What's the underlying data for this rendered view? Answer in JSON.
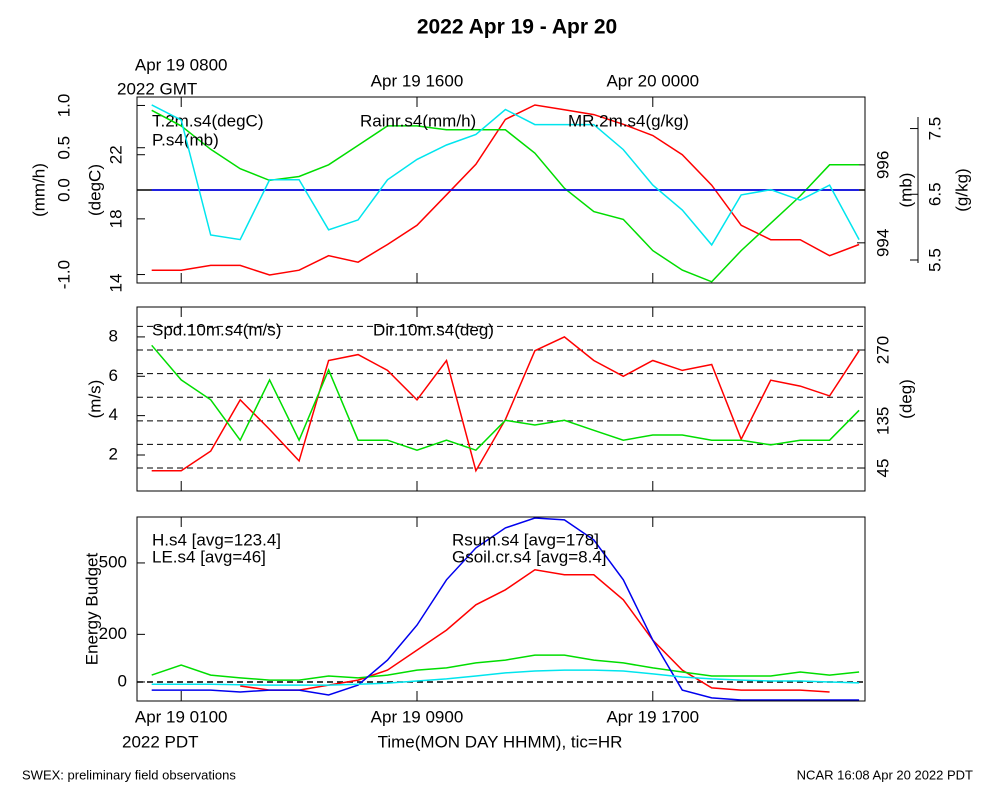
{
  "chart_data": {
    "type": "line",
    "title": "2022 Apr 19 - Apr 20",
    "xlabel": "Time(MON DAY HHMM), tic=HR",
    "x_note": "2022 PDT",
    "x2_note": "2022 GMT",
    "x": [
      0,
      1,
      2,
      3,
      4,
      5,
      6,
      7,
      8,
      9,
      10,
      11,
      12,
      13,
      14,
      15,
      16,
      17,
      18,
      19,
      20,
      21,
      22,
      23,
      24
    ],
    "xlim": [
      -0.5,
      24.2
    ],
    "xticks": [
      {
        "value": 1,
        "label": "Apr 19 0100"
      },
      {
        "value": 9,
        "label": "Apr 19 0900"
      },
      {
        "value": 17,
        "label": "Apr 19 1700"
      }
    ],
    "x2ticks": [
      {
        "value": 1,
        "label": "Apr 19 0800"
      },
      {
        "value": 9,
        "label": "Apr 19 1600"
      },
      {
        "value": 17,
        "label": "Apr 20 0000"
      }
    ],
    "panels": [
      {
        "axes": [
          {
            "label": "(mm/h)",
            "ylim": [
              -1.1,
              1.1
            ],
            "yticks": [
              {
                "value": -1,
                "label": "-1.0"
              },
              {
                "value": 0,
                "label": "0.0"
              },
              0.5,
              {
                "value": 1,
                "label": "1.0"
              }
            ],
            "baseline": 0
          },
          {
            "label": "(degC)",
            "ylim": [
              14,
              25.6
            ],
            "yticks": [
              14,
              18,
              22
            ]
          },
          {
            "label": "(mb)",
            "ylim": [
              992.97,
              997.74
            ],
            "yticks": [
              994,
              996
            ]
          },
          {
            "label": "(g/kg)",
            "ylim": [
              5.15,
              7.98
            ],
            "yticks": [
              5.5,
              6.5,
              7.5
            ]
          }
        ],
        "series": [
          {
            "name": "T.2m.s4(degC)",
            "color": "#ff0000",
            "axis": 1,
            "values": [
              14.8,
              14.8,
              15.1,
              15.1,
              14.5,
              14.8,
              15.7,
              15.3,
              16.4,
              17.6,
              19.5,
              21.4,
              24.2,
              25.1,
              24.8,
              24.5,
              23.9,
              23.2,
              22.0,
              20.1,
              17.6,
              16.7,
              16.7,
              15.7,
              16.4
            ]
          },
          {
            "name": "P.s4(mb)",
            "color": "#00dd00",
            "axis": 2,
            "values": [
              997.4,
              997.0,
              996.4,
              995.9,
              995.6,
              995.7,
              996.0,
              996.5,
              997.0,
              997.0,
              996.9,
              996.9,
              996.9,
              996.3,
              995.4,
              994.8,
              994.6,
              993.8,
              993.3,
              993.0,
              993.8,
              994.5,
              995.2,
              996.0,
              996.0
            ]
          },
          {
            "name": "Rainr.s4(mm/h)",
            "color": "#0000ff",
            "axis": 0,
            "values": [
              0,
              0,
              0,
              0,
              0,
              0,
              0,
              0,
              0,
              0,
              0,
              0,
              0,
              0,
              0,
              0,
              0,
              0,
              0,
              0,
              0,
              0,
              0,
              0,
              0
            ]
          },
          {
            "name": "MR.2m.s4(g/kg)",
            "color": "#00e5ee",
            "axis": 3,
            "values": [
              7.86,
              7.63,
              5.88,
              5.81,
              6.72,
              6.72,
              5.96,
              6.11,
              6.72,
              7.03,
              7.25,
              7.41,
              7.79,
              7.56,
              7.56,
              7.56,
              7.18,
              6.64,
              6.26,
              5.73,
              6.49,
              6.57,
              6.41,
              6.64,
              5.81
            ]
          }
        ]
      },
      {
        "axes": [
          {
            "label": "(m/s)",
            "ylim": [
              0.17,
              9.52
            ],
            "yticks": [
              2,
              4,
              6,
              8
            ]
          },
          {
            "label": "(deg)",
            "ylim": [
              1.2,
              352
            ],
            "yticks": [
              45,
              135,
              270
            ],
            "gridlines": [
              45,
              90,
              135,
              180,
              225,
              270,
              315
            ]
          }
        ],
        "series": [
          {
            "name": "Spd.10m.s4(m/s)",
            "color": "#ff0000",
            "axis": 0,
            "values": [
              1.2,
              1.2,
              2.2,
              4.8,
              3.3,
              1.7,
              6.8,
              7.1,
              6.3,
              4.8,
              6.8,
              1.2,
              3.8,
              7.3,
              8.0,
              6.8,
              6.0,
              6.8,
              6.3,
              6.6,
              2.8,
              5.8,
              5.5,
              5.0,
              7.3
            ]
          },
          {
            "name": "Dir.10m.s4(deg)",
            "color": "#00dd00",
            "axis": 1,
            "values": [
              279,
              213,
              175,
              98,
              213,
              98,
              232,
              98,
              98,
              79,
              98,
              79,
              136,
              127,
              136,
              117,
              98,
              108,
              108,
              98,
              98,
              89,
              98,
              98,
              155
            ]
          }
        ]
      },
      {
        "axes": [
          {
            "label": "Energy Budget",
            "ylim": [
              -80,
              693
            ],
            "yticks": [
              0,
              200,
              500
            ],
            "baseline": 0
          }
        ],
        "series": [
          {
            "name": "H.s4 [avg=123.4]",
            "color": "#ff0000",
            "axis": 0,
            "values": [
              null,
              null,
              null,
              -17,
              -34,
              -34,
              -13,
              8,
              50,
              134,
              218,
              324,
              387,
              471,
              450,
              450,
              345,
              176,
              50,
              -25,
              -34,
              -34,
              -34,
              -42,
              null
            ]
          },
          {
            "name": "LE.s4 [avg=46]",
            "color": "#00dd00",
            "axis": 0,
            "values": [
              29,
              71,
              29,
              17,
              8,
              8,
              25,
              17,
              29,
              50,
              59,
              80,
              92,
              113,
              113,
              92,
              80,
              59,
              42,
              25,
              25,
              25,
              42,
              29,
              42
            ]
          },
          {
            "name": "Rsum.s4 [avg=178]",
            "color": "#0000ee",
            "axis": 0,
            "values": [
              -34,
              -34,
              -34,
              -42,
              -34,
              -34,
              -55,
              -13,
              92,
              239,
              429,
              563,
              647,
              689,
              681,
              597,
              429,
              176,
              -34,
              -67,
              -76,
              -76,
              -76,
              -76,
              -76
            ]
          },
          {
            "name": "Gsoil.cr.s4 [avg=8.4]",
            "color": "#00e5ee",
            "axis": 0,
            "values": [
              -10,
              -10,
              -10,
              -12,
              -13,
              -13,
              -13,
              -10,
              -5,
              4,
              13,
              25,
              38,
              46,
              50,
              50,
              46,
              34,
              21,
              13,
              8,
              4,
              4,
              0,
              -4
            ]
          }
        ]
      }
    ]
  },
  "footer_left": "SWEX: preliminary field observations",
  "footer_right": "NCAR 16:08 Apr 20 2022 PDT"
}
